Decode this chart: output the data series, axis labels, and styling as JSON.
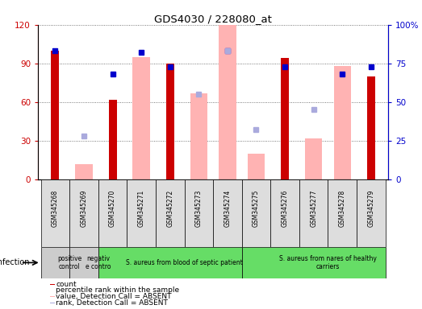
{
  "title": "GDS4030 / 228080_at",
  "samples": [
    "GSM345268",
    "GSM345269",
    "GSM345270",
    "GSM345271",
    "GSM345272",
    "GSM345273",
    "GSM345274",
    "GSM345275",
    "GSM345276",
    "GSM345277",
    "GSM345278",
    "GSM345279"
  ],
  "count_values": [
    100,
    null,
    62,
    null,
    90,
    null,
    null,
    null,
    94,
    null,
    null,
    80
  ],
  "count_color": "#cc0000",
  "rank_values": [
    83,
    null,
    68,
    82,
    73,
    null,
    83,
    null,
    73,
    null,
    68,
    73
  ],
  "rank_color": "#0000cc",
  "absent_value_values": [
    null,
    12,
    null,
    95,
    null,
    67,
    120,
    20,
    null,
    32,
    88,
    null
  ],
  "absent_value_color": "#ffb3b3",
  "absent_rank_values": [
    null,
    28,
    null,
    null,
    null,
    55,
    83,
    32,
    null,
    45,
    null,
    null
  ],
  "absent_rank_color": "#aaaadd",
  "ylim_left": [
    0,
    120
  ],
  "ylim_right": [
    0,
    100
  ],
  "yticks_left": [
    0,
    30,
    60,
    90,
    120
  ],
  "ytick_labels_left": [
    "0",
    "30",
    "60",
    "90",
    "120"
  ],
  "yticks_right": [
    0,
    25,
    50,
    75,
    100
  ],
  "ytick_labels_right": [
    "0",
    "25",
    "50",
    "75",
    "100%"
  ],
  "left_axis_color": "#cc0000",
  "right_axis_color": "#0000cc",
  "groups": [
    {
      "label": "positive\ncontrol",
      "color": "#cccccc",
      "start": 0,
      "end": 1
    },
    {
      "label": "negativ\ne contro",
      "color": "#cccccc",
      "start": 1,
      "end": 2
    },
    {
      "label": "S. aureus from blood of septic patient",
      "color": "#66dd66",
      "start": 2,
      "end": 7
    },
    {
      "label": "S. aureus from nares of healthy\ncarriers",
      "color": "#66dd66",
      "start": 7,
      "end": 12
    }
  ],
  "infection_label": "infection",
  "legend_items": [
    {
      "label": "count",
      "color": "#cc0000"
    },
    {
      "label": "percentile rank within the sample",
      "color": "#0000cc"
    },
    {
      "label": "value, Detection Call = ABSENT",
      "color": "#ffb3b3"
    },
    {
      "label": "rank, Detection Call = ABSENT",
      "color": "#aaaadd"
    }
  ],
  "bar_width": 0.4,
  "background_color": "#ffffff",
  "grid_color": "#555555",
  "cell_bg": "#dddddd"
}
